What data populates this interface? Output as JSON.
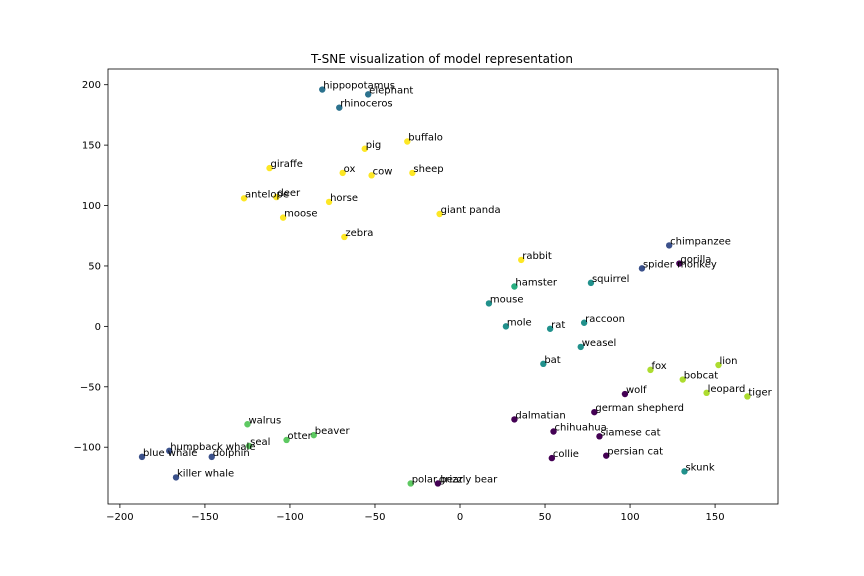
{
  "chart_data": {
    "type": "scatter",
    "title": "T-SNE visualization of model representation",
    "xlabel": "",
    "ylabel": "",
    "xlim": [
      -207,
      187
    ],
    "ylim": [
      -147,
      213
    ],
    "xticks": [
      -200,
      -150,
      -100,
      -50,
      0,
      50,
      100,
      150
    ],
    "yticks": [
      -100,
      -50,
      0,
      50,
      100,
      150,
      200
    ],
    "grid": false,
    "legend": "none",
    "colors": {
      "purple": "#440154",
      "indigo": "#3b518b",
      "teal_blue": "#2c728e",
      "teal": "#21918c",
      "green_teal": "#28ae80",
      "green": "#5ec962",
      "lime": "#addc30",
      "yellow": "#fde725"
    },
    "points": [
      {
        "label": "hippopotamus",
        "x": -81,
        "y": 196,
        "color": "teal_blue"
      },
      {
        "label": "elephant",
        "x": -54,
        "y": 192,
        "color": "teal_blue"
      },
      {
        "label": "rhinoceros",
        "x": -71,
        "y": 181,
        "color": "teal_blue"
      },
      {
        "label": "buffalo",
        "x": -31,
        "y": 153,
        "color": "yellow"
      },
      {
        "label": "pig",
        "x": -56,
        "y": 147,
        "color": "yellow"
      },
      {
        "label": "giraffe",
        "x": -112,
        "y": 131,
        "color": "yellow"
      },
      {
        "label": "ox",
        "x": -69,
        "y": 127,
        "color": "yellow"
      },
      {
        "label": "cow",
        "x": -52,
        "y": 125,
        "color": "yellow"
      },
      {
        "label": "sheep",
        "x": -28,
        "y": 127,
        "color": "yellow"
      },
      {
        "label": "antelope",
        "x": -127,
        "y": 106,
        "color": "yellow"
      },
      {
        "label": "deer",
        "x": -108,
        "y": 107,
        "color": "yellow"
      },
      {
        "label": "horse",
        "x": -77,
        "y": 103,
        "color": "yellow"
      },
      {
        "label": "moose",
        "x": -104,
        "y": 90,
        "color": "yellow"
      },
      {
        "label": "giant panda",
        "x": -12,
        "y": 93,
        "color": "yellow"
      },
      {
        "label": "zebra",
        "x": -68,
        "y": 74,
        "color": "yellow"
      },
      {
        "label": "rabbit",
        "x": 36,
        "y": 55,
        "color": "yellow"
      },
      {
        "label": "chimpanzee",
        "x": 123,
        "y": 67,
        "color": "indigo"
      },
      {
        "label": "gorilla",
        "x": 129,
        "y": 52,
        "color": "purple"
      },
      {
        "label": "spider monkey",
        "x": 107,
        "y": 48,
        "color": "indigo"
      },
      {
        "label": "hamster",
        "x": 32,
        "y": 33,
        "color": "green_teal"
      },
      {
        "label": "squirrel",
        "x": 77,
        "y": 36,
        "color": "teal"
      },
      {
        "label": "mouse",
        "x": 17,
        "y": 19,
        "color": "teal"
      },
      {
        "label": "raccoon",
        "x": 73,
        "y": 3,
        "color": "teal"
      },
      {
        "label": "mole",
        "x": 27,
        "y": 0,
        "color": "teal"
      },
      {
        "label": "rat",
        "x": 53,
        "y": -2,
        "color": "teal"
      },
      {
        "label": "weasel",
        "x": 71,
        "y": -17,
        "color": "teal"
      },
      {
        "label": "bat",
        "x": 49,
        "y": -31,
        "color": "teal"
      },
      {
        "label": "lion",
        "x": 152,
        "y": -32,
        "color": "lime"
      },
      {
        "label": "fox",
        "x": 112,
        "y": -36,
        "color": "lime"
      },
      {
        "label": "bobcat",
        "x": 131,
        "y": -44,
        "color": "lime"
      },
      {
        "label": "wolf",
        "x": 97,
        "y": -56,
        "color": "purple"
      },
      {
        "label": "leopard",
        "x": 145,
        "y": -55,
        "color": "lime"
      },
      {
        "label": "tiger",
        "x": 169,
        "y": -58,
        "color": "lime"
      },
      {
        "label": "german shepherd",
        "x": 79,
        "y": -71,
        "color": "purple"
      },
      {
        "label": "dalmatian",
        "x": 32,
        "y": -77,
        "color": "purple"
      },
      {
        "label": "chihuahua",
        "x": 55,
        "y": -87,
        "color": "purple"
      },
      {
        "label": "siamese cat",
        "x": 82,
        "y": -91,
        "color": "purple"
      },
      {
        "label": "persian cat",
        "x": 86,
        "y": -107,
        "color": "purple"
      },
      {
        "label": "collie",
        "x": 54,
        "y": -109,
        "color": "purple"
      },
      {
        "label": "skunk",
        "x": 132,
        "y": -120,
        "color": "teal"
      },
      {
        "label": "walrus",
        "x": -125,
        "y": -81,
        "color": "green"
      },
      {
        "label": "beaver",
        "x": -86,
        "y": -90,
        "color": "green"
      },
      {
        "label": "otter",
        "x": -102,
        "y": -94,
        "color": "green"
      },
      {
        "label": "seal",
        "x": -124,
        "y": -99,
        "color": "green"
      },
      {
        "label": "humpback whale",
        "x": -171,
        "y": -103,
        "color": "indigo"
      },
      {
        "label": "blue whale",
        "x": -187,
        "y": -108,
        "color": "indigo"
      },
      {
        "label": "dolphin",
        "x": -146,
        "y": -108,
        "color": "indigo"
      },
      {
        "label": "killer whale",
        "x": -167,
        "y": -125,
        "color": "indigo"
      },
      {
        "label": "polar bear",
        "x": -29,
        "y": -130,
        "color": "green"
      },
      {
        "label": "grizzly bear",
        "x": -13,
        "y": -130,
        "color": "purple"
      }
    ]
  }
}
